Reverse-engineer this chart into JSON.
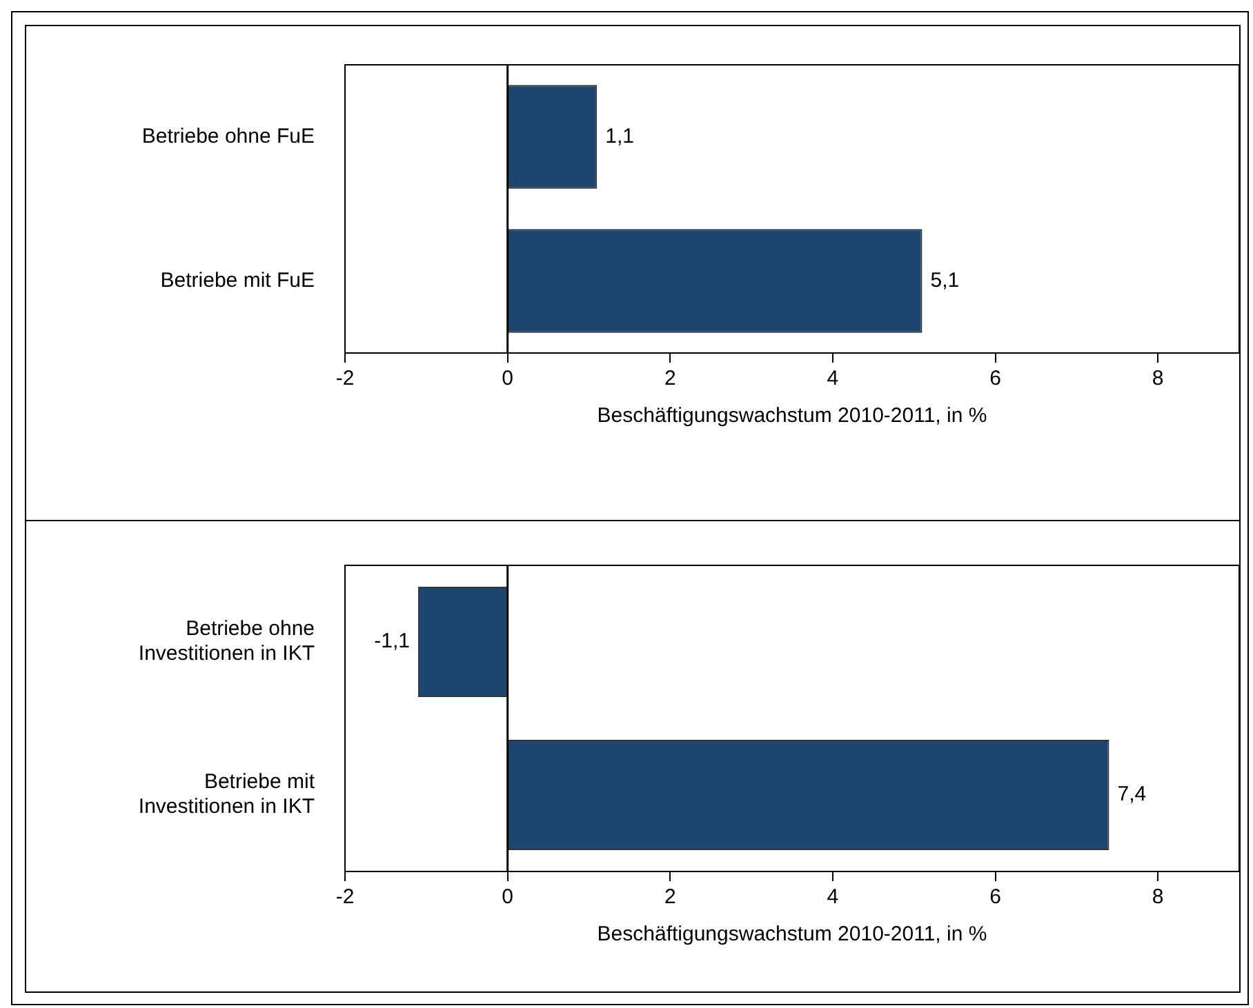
{
  "chart_data": [
    {
      "type": "bar",
      "orientation": "horizontal",
      "categories": [
        "Betriebe ohne FuE",
        "Betriebe mit FuE"
      ],
      "values": [
        1.1,
        5.1
      ],
      "value_labels": [
        "1,1",
        "5,1"
      ],
      "color": "#1c4670",
      "xlim": [
        -2,
        9
      ],
      "xticks": [
        -2,
        0,
        2,
        4,
        6,
        8
      ],
      "xlabel": "Beschäftigungswachstum 2010-2011, in %",
      "ref_lines": [
        {
          "axis": "x",
          "value": 0,
          "color": "#000000"
        }
      ]
    },
    {
      "type": "bar",
      "orientation": "horizontal",
      "categories": [
        "Betriebe ohne Investitionen in IKT",
        "Betriebe mit Investitionen in IKT"
      ],
      "values": [
        -1.1,
        7.4
      ],
      "value_labels": [
        "-1,1",
        "7,4"
      ],
      "color": "#1c4670",
      "xlim": [
        -2,
        9
      ],
      "xticks": [
        -2,
        0,
        2,
        4,
        6,
        8
      ],
      "xlabel": "Beschäftigungswachstum 2010-2011, in %",
      "ref_lines": [
        {
          "axis": "x",
          "value": 0,
          "color": "#000000"
        }
      ]
    }
  ]
}
